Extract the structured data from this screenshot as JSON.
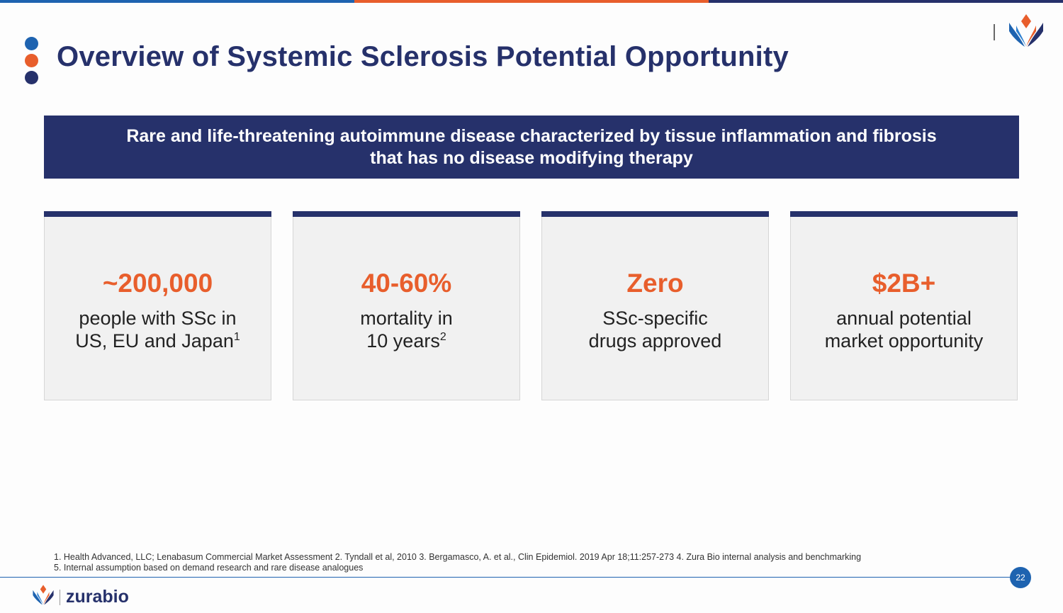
{
  "colors": {
    "navy": "#26316b",
    "orange": "#e85e2c",
    "blue": "#1e63b0",
    "light_blue": "#2d7fd0",
    "card_bg": "#f1f1f1"
  },
  "header": {
    "title": "Overview of Systemic Sclerosis Potential Opportunity",
    "dots": [
      "blue-dot",
      "orange-dot",
      "navy-dot"
    ],
    "logo_icon": "zurabio-flower-icon"
  },
  "banner": {
    "line1": "Rare and life-threatening autoimmune disease characterized by tissue inflammation and fibrosis",
    "line2": "that has no disease modifying therapy"
  },
  "cards": [
    {
      "stat": "~200,000",
      "line1": "people with SSc in",
      "line2": "US, EU and Japan",
      "sup": "1"
    },
    {
      "stat": "40-60%",
      "line1": "mortality in",
      "line2": "10 years",
      "sup": "2"
    },
    {
      "stat": "Zero",
      "line1": "SSc-specific",
      "line2": "drugs approved",
      "sup": ""
    },
    {
      "stat": "$2B+",
      "line1": "annual potential",
      "line2": "market opportunity",
      "sup": ""
    }
  ],
  "footnotes": {
    "line1": "1. Health Advanced, LLC; Lenabasum Commercial Market Assessment 2. Tyndall et al, 2010 3. Bergamasco, A. et al., Clin Epidemiol. 2019 Apr 18;11:257-273 4. Zura Bio internal analysis and benchmarking",
    "line2": "5. Internal assumption based on demand research and rare disease analogues"
  },
  "footer": {
    "brand_name": "zurabio",
    "page_number": "22"
  }
}
